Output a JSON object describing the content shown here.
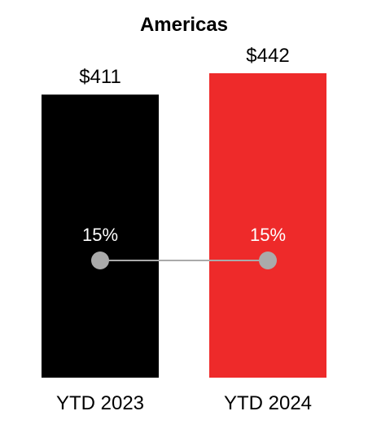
{
  "chart_data": {
    "type": "bar",
    "title": "Americas",
    "categories": [
      "YTD 2023",
      "YTD 2024"
    ],
    "values": [
      411,
      442
    ],
    "value_labels": [
      "$411",
      "$442"
    ],
    "bar_colors": [
      "#000000",
      "#ee2a2a"
    ],
    "ylim": [
      0,
      450
    ],
    "grid": false,
    "overlay_line": {
      "type": "line",
      "values": [
        15,
        15
      ],
      "labels": [
        "15%",
        "15%"
      ],
      "marker_color": "#aaaaaa",
      "line_color": "#aaaaaa",
      "label_color": "#ffffff"
    }
  }
}
